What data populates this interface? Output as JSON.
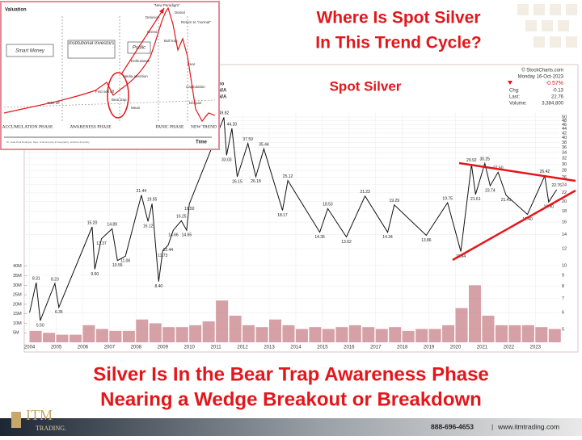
{
  "header": {
    "title_lines": [
      "Where Is Spot Silver",
      "In This Trend Cycle?"
    ]
  },
  "inset": {
    "valuation": "Valuation",
    "smart_money": "Smart Money",
    "institutional": "Institutional Investors",
    "public": "Public",
    "take_off": "Take off",
    "first_sell_off": "First sell off",
    "bear_trap": "Bear trap",
    "media": "Media attention",
    "enthusiasm": "Enthusiasm",
    "greed": "Greed",
    "delusion": "Delusion",
    "new_paradigm": "\"New Paradigm\"",
    "denial": "Denial",
    "return_normal": "Return to \"normal\"",
    "bull_trap": "Bull trap",
    "fear": "Fear",
    "capitulation": "Capitulation",
    "despair": "Despair",
    "mean": "Mean",
    "time": "Time",
    "phases": [
      "ACCUMULATION PHASE",
      "AWARENESS PHASE",
      "PANIC PHASE",
      "NEW TREND"
    ],
    "credit": "Dr. Jean-Paul Rodrigue, Dept. of Economics & Geography, Hofstra University"
  },
  "chart_data": {
    "type": "line",
    "title": "Spot Silver",
    "source": "© StockCharts.com",
    "info": {
      "date": "Monday 16-Oct-2023",
      "pct": "-0.57%",
      "chg_label": "Chg:",
      "chg": "-0.13",
      "last_label": "Last:",
      "last": "22.76",
      "vol_label": "Volume:",
      "vol": "3,384,800"
    },
    "overlay_labels": [
      "no",
      "N/A",
      "N/A"
    ],
    "color": "#111111",
    "log_scale": true,
    "grid": true,
    "x": [
      2004.0,
      2004.25,
      2004.4,
      2004.95,
      2005.1,
      2006.35,
      2006.45,
      2006.7,
      2007.1,
      2007.3,
      2007.6,
      2008.2,
      2008.45,
      2008.6,
      2008.85,
      2009.0,
      2009.2,
      2009.4,
      2009.7,
      2009.9,
      2010.0,
      2011.3,
      2011.4,
      2011.6,
      2011.8,
      2012.2,
      2012.5,
      2012.8,
      2013.5,
      2013.7,
      2014.9,
      2015.2,
      2015.9,
      2016.6,
      2017.45,
      2017.7,
      2018.9,
      2019.7,
      2020.2,
      2020.6,
      2020.75,
      2021.1,
      2021.3,
      2021.6,
      2021.9,
      2022.7,
      2023.35,
      2023.5,
      2023.8
    ],
    "values": [
      6.0,
      8.31,
      5.5,
      8.23,
      6.35,
      15.2,
      9.6,
      13.37,
      14.89,
      10.55,
      11.06,
      21.44,
      16.12,
      19.55,
      8.4,
      11.73,
      12.44,
      14.66,
      16.25,
      14.65,
      19.5,
      49.82,
      33.03,
      44.2,
      26.15,
      37.59,
      26.18,
      35.44,
      18.17,
      25.12,
      14.35,
      18.53,
      13.62,
      21.23,
      14.34,
      19.29,
      13.86,
      19.75,
      11.64,
      29.92,
      21.61,
      30.25,
      23.74,
      27.5,
      21.41,
      17.4,
      26.42,
      19.9,
      22.76
    ],
    "value_labels": [
      null,
      "8.31",
      "5.50",
      "8.23",
      "6.35",
      "15.20",
      "9.60",
      "13.37",
      "14.89",
      "10.55",
      "11.06",
      "21.44",
      "16.12",
      "19.55",
      "8.40",
      "11.73",
      "12.44",
      "14.66",
      "16.25",
      "14.65",
      "19.50",
      "49.82",
      "33.03",
      "44.20",
      "26.15",
      "37.59",
      "26.18",
      "35.44",
      "18.17",
      "25.12",
      "14.35",
      "18.53",
      "13.62",
      "21.23",
      "14.34",
      "19.29",
      "13.86",
      "19.75",
      "11.64",
      "29.92",
      "21.61",
      "30.25",
      "23.74",
      "27.50",
      "21.41",
      "17.40",
      "26.42",
      "19.90",
      "22.76"
    ],
    "xlim": [
      2003.8,
      2023.9
    ],
    "xticks": [
      2004,
      2005,
      2006,
      2007,
      2008,
      2009,
      2010,
      2011,
      2012,
      2013,
      2014,
      2015,
      2016,
      2017,
      2018,
      2019,
      2020,
      2021,
      2022,
      2023
    ],
    "ylim": [
      5,
      50
    ],
    "yticks": [
      5,
      6,
      7,
      8,
      9,
      10,
      12,
      14,
      16,
      18,
      20,
      22,
      24,
      26,
      28,
      30,
      32,
      34,
      36,
      38,
      40,
      42,
      44,
      46,
      48,
      50
    ],
    "volume": {
      "color": "#b5545c",
      "x": [
        2004.0,
        2004.5,
        2005.0,
        2005.5,
        2006.0,
        2006.5,
        2007.0,
        2007.5,
        2008.0,
        2008.5,
        2009.0,
        2009.5,
        2010.0,
        2010.5,
        2011.0,
        2011.5,
        2012.0,
        2012.5,
        2013.0,
        2013.5,
        2014.0,
        2014.5,
        2015.0,
        2015.5,
        2016.0,
        2016.5,
        2017.0,
        2017.5,
        2018.0,
        2018.5,
        2019.0,
        2019.5,
        2020.0,
        2020.5,
        2021.0,
        2021.5,
        2022.0,
        2022.5,
        2023.0,
        2023.5
      ],
      "values": [
        6000000,
        5000000,
        4000000,
        4000000,
        9000000,
        7000000,
        6000000,
        6000000,
        12000000,
        10000000,
        8000000,
        8000000,
        9000000,
        11000000,
        22000000,
        14000000,
        9000000,
        8000000,
        12000000,
        9000000,
        7000000,
        8000000,
        7000000,
        8000000,
        9000000,
        8000000,
        7000000,
        8000000,
        6000000,
        7000000,
        7000000,
        9000000,
        18000000,
        30000000,
        14000000,
        9000000,
        9000000,
        9000000,
        8000000,
        7000000
      ],
      "ylim": [
        0,
        45000000
      ],
      "yticks": [
        {
          "value": 5000000,
          "label": "5M"
        },
        {
          "value": 10000000,
          "label": "10M"
        },
        {
          "value": 15000000,
          "label": "15M"
        },
        {
          "value": 20000000,
          "label": "20M"
        },
        {
          "value": 25000000,
          "label": "25M"
        },
        {
          "value": 30000000,
          "label": "30M"
        },
        {
          "value": 35000000,
          "label": "35M"
        },
        {
          "value": 40000000,
          "label": "40M"
        }
      ]
    }
  },
  "footer": {
    "caption_lines": [
      "Silver Is In the Bear Trap Awareness Phase",
      "Nearing a Wedge Breakout or Breakdown"
    ],
    "logo_mark": "ITM",
    "logo_text": "TRADING.",
    "phone": "888-696-4653",
    "separator": "|",
    "website": "www.itmtrading.com"
  }
}
